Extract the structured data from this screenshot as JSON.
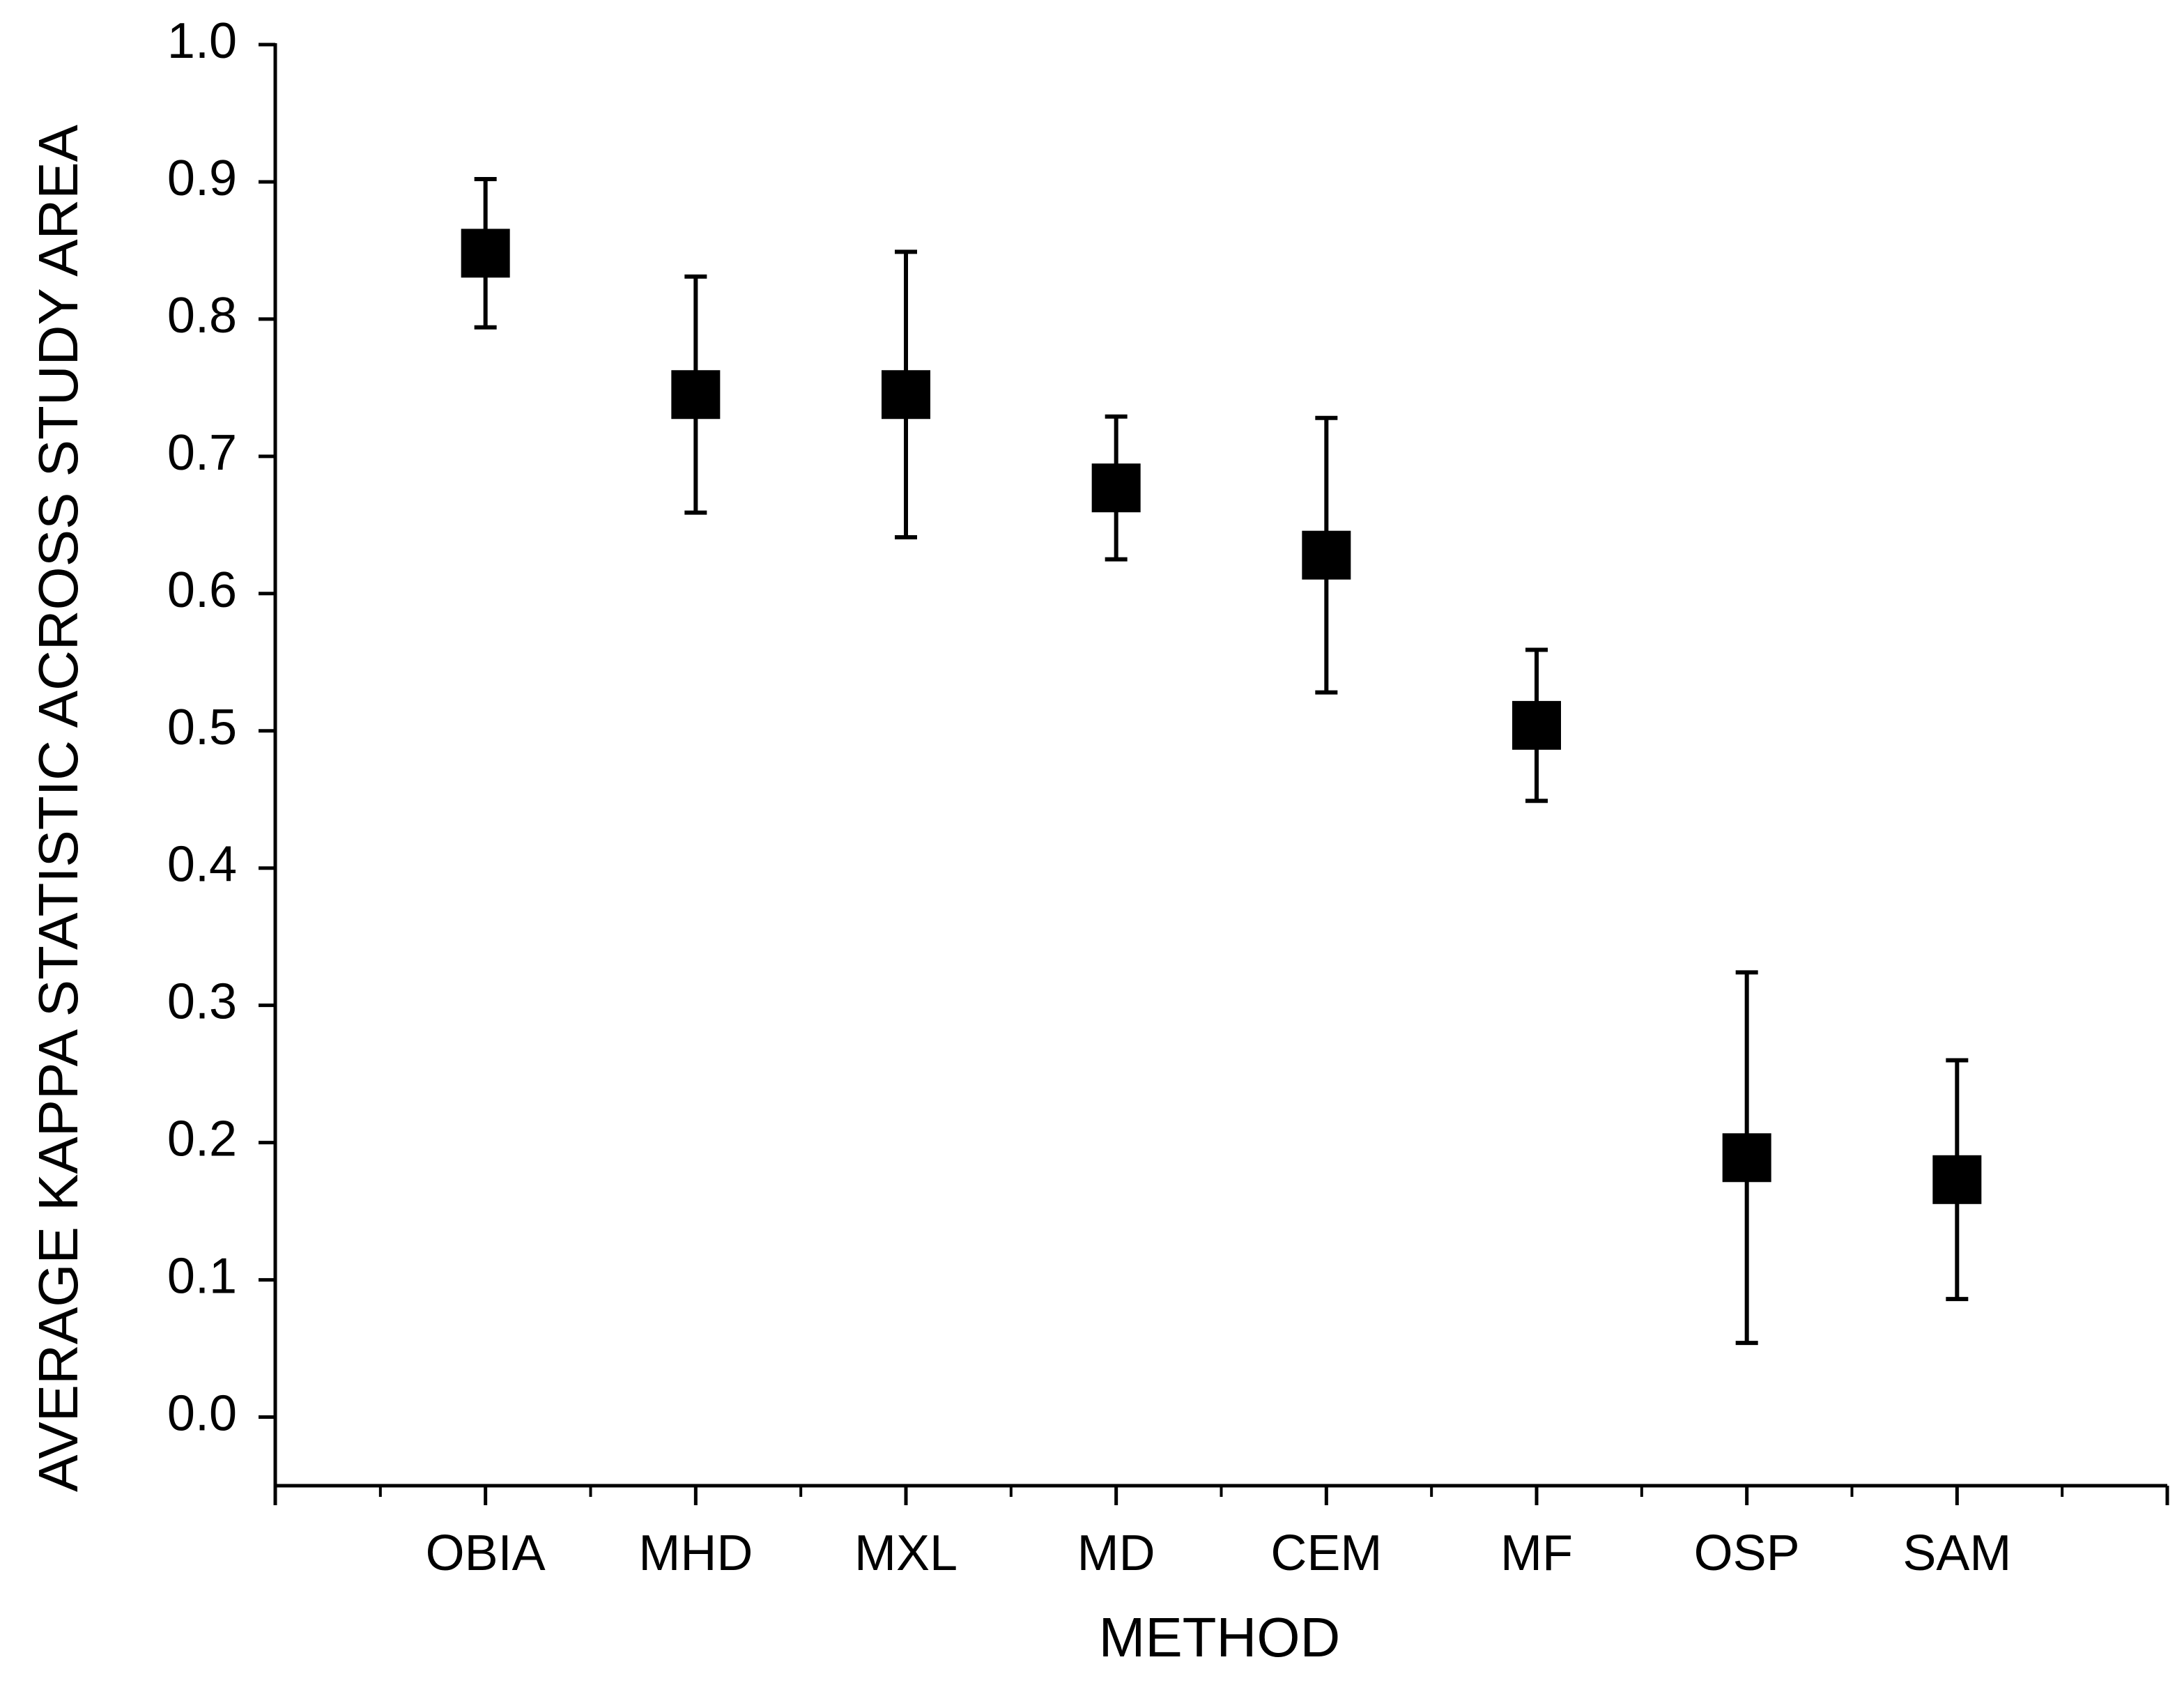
{
  "chart_data": {
    "type": "errorbar",
    "x_label": "METHOD",
    "y_label": "AVERAGE KAPPA STATISTIC ACROSS STUDY AREA",
    "categories": [
      "OBIA",
      "MHD",
      "MXL",
      "MD",
      "CEM",
      "MF",
      "OSP",
      "SAM"
    ],
    "values": [
      0.848,
      0.745,
      0.745,
      0.677,
      0.628,
      0.504,
      0.189,
      0.173
    ],
    "errors": [
      0.054,
      0.086,
      0.104,
      0.052,
      0.1,
      0.055,
      0.135,
      0.087
    ],
    "color": "#000000",
    "ylim": [
      -0.05,
      1.0
    ],
    "yticks": [
      {
        "value": 0,
        "label": "0.0"
      },
      0.1,
      0.2,
      0.3,
      0.4,
      0.5,
      0.6,
      0.7,
      0.8,
      0.9,
      {
        "value": 1,
        "label": "1.0"
      }
    ],
    "grid": false
  }
}
